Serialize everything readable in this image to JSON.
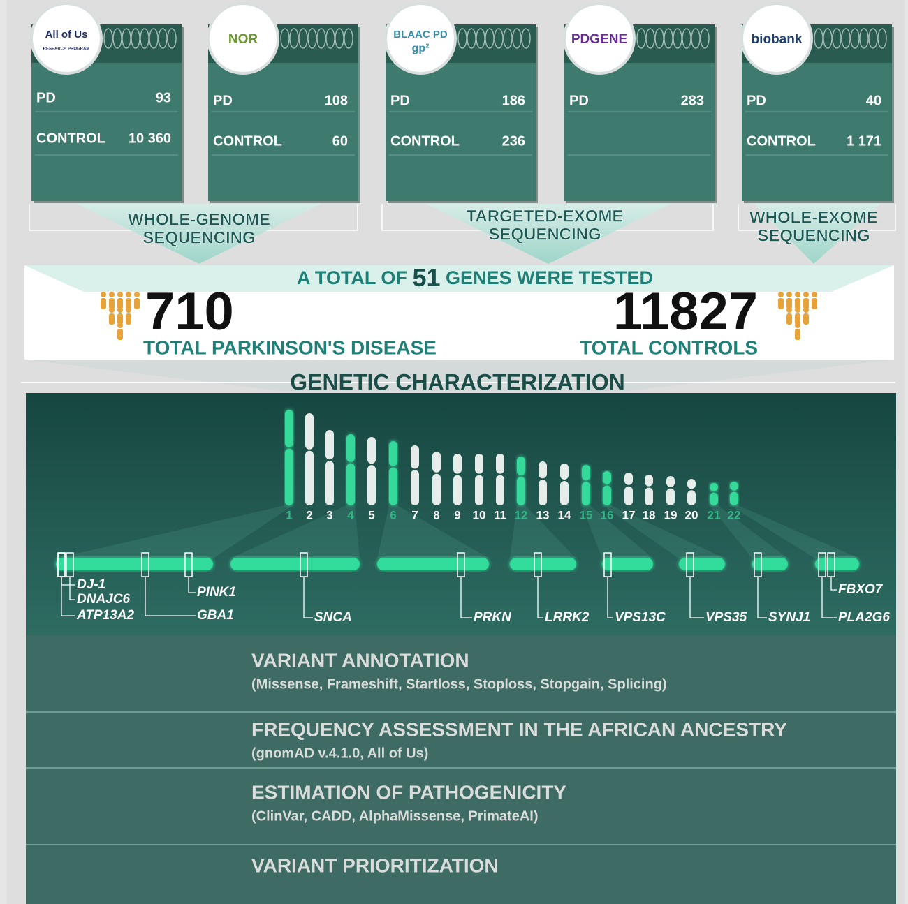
{
  "cohorts": [
    {
      "logo": "All of Us",
      "logo_sub": "RESEARCH PROGRAM",
      "logo_color": "#1b2a5c",
      "rows": [
        {
          "label": "PD",
          "value": "93"
        },
        {
          "label": "CONTROL",
          "value": "10 360"
        }
      ]
    },
    {
      "logo": "NOR",
      "logo_color": "#6b9a2e",
      "rows": [
        {
          "label": "PD",
          "value": "108"
        },
        {
          "label": "CONTROL",
          "value": "60"
        }
      ]
    },
    {
      "logo": "BLAAC PD",
      "logo_sub": "gp²",
      "logo_color": "#3b8ea8",
      "rows": [
        {
          "label": "PD",
          "value": "186"
        },
        {
          "label": "CONTROL",
          "value": "236"
        }
      ]
    },
    {
      "logo": "PDGENE",
      "logo_color": "#6a2b9a",
      "rows": [
        {
          "label": "PD",
          "value": "283"
        }
      ]
    },
    {
      "logo": "biobank",
      "logo_color": "#1e3f6e",
      "rows": [
        {
          "label": "PD",
          "value": "40"
        },
        {
          "label": "CONTROL",
          "value": "1 171"
        }
      ]
    }
  ],
  "sequencing": [
    {
      "lines": [
        "WHOLE-GENOME",
        "SEQUENCING"
      ]
    },
    {
      "lines": [
        "TARGETED-EXOME",
        "SEQUENCING"
      ]
    },
    {
      "lines": [
        "WHOLE-EXOME",
        "SEQUENCING"
      ]
    }
  ],
  "totals": {
    "heading_pre": "A TOTAL OF",
    "heading_num": "51",
    "heading_post": "GENES WERE TESTED",
    "pd_count": "710",
    "pd_label": "TOTAL PARKINSON'S DISEASE",
    "control_count": "11827",
    "control_label": "TOTAL CONTROLS"
  },
  "genetic": {
    "title": "GENETIC CHARACTERIZATION",
    "chromosomes": [
      {
        "label": "1",
        "tested": true
      },
      {
        "label": "2",
        "tested": false
      },
      {
        "label": "3",
        "tested": false
      },
      {
        "label": "4",
        "tested": true
      },
      {
        "label": "5",
        "tested": false
      },
      {
        "label": "6",
        "tested": true
      },
      {
        "label": "7",
        "tested": false
      },
      {
        "label": "8",
        "tested": false
      },
      {
        "label": "9",
        "tested": false
      },
      {
        "label": "10",
        "tested": false
      },
      {
        "label": "11",
        "tested": false
      },
      {
        "label": "12",
        "tested": true
      },
      {
        "label": "13",
        "tested": false
      },
      {
        "label": "14",
        "tested": false
      },
      {
        "label": "15",
        "tested": true
      },
      {
        "label": "16",
        "tested": true
      },
      {
        "label": "17",
        "tested": false
      },
      {
        "label": "18",
        "tested": false
      },
      {
        "label": "19",
        "tested": false
      },
      {
        "label": "20",
        "tested": false
      },
      {
        "label": "21",
        "tested": true
      },
      {
        "label": "22",
        "tested": true
      }
    ],
    "genes": [
      "DJ-1",
      "DNAJC6",
      "ATP13A2",
      "PINK1",
      "GBA1",
      "SNCA",
      "PRKN",
      "LRRK2",
      "VPS13C",
      "VPS35",
      "SYNJ1",
      "FBXO7",
      "PLA2G6"
    ]
  },
  "steps": [
    {
      "title": "VARIANT ANNOTATION",
      "subtitle": "(Missense, Frameshift, Startloss, Stoploss, Stopgain, Splicing)"
    },
    {
      "title": "FREQUENCY ASSESSMENT IN THE AFRICAN ANCESTRY",
      "subtitle": "(gnomAD v.4.1.0, All of Us)"
    },
    {
      "title": "ESTIMATION OF PATHOGENICITY",
      "subtitle": "(ClinVar, CADD, AlphaMissense, PrimateAI)"
    },
    {
      "title": "VARIANT PRIORITIZATION"
    }
  ]
}
